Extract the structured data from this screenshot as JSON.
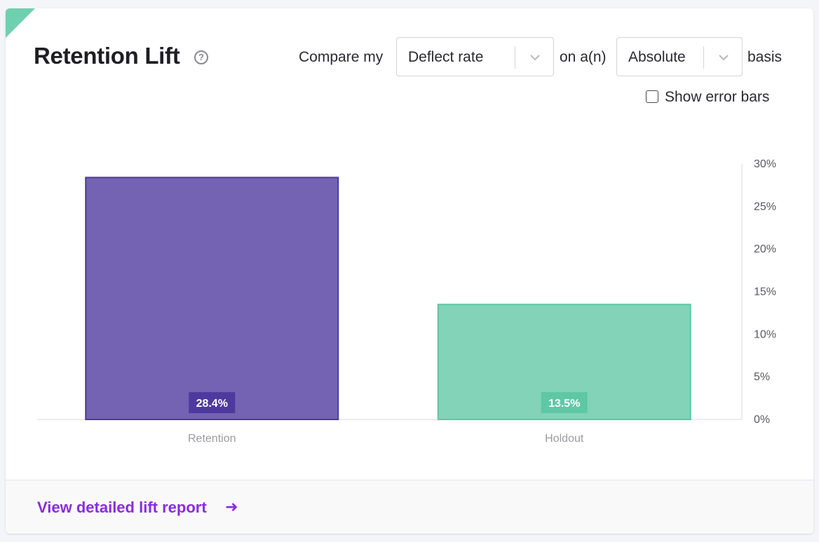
{
  "header": {
    "title": "Retention Lift",
    "help_icon": "question-circle-icon"
  },
  "controls": {
    "compare_prefix": "Compare my",
    "metric_select_value": "Deflect rate",
    "middle_text": "on a(n)",
    "basis_select_value": "Absolute",
    "suffix": "basis",
    "error_bars_label": "Show error bars",
    "error_bars_checked": false
  },
  "footer": {
    "link_label": "View detailed lift report",
    "link_icon": "arrow-right-icon"
  },
  "colors": {
    "corner_accent": "#6fd0b0",
    "retention_fill": "#7363b2",
    "retention_border": "#4e3a9e",
    "retention_label_bg": "#4e3a9e",
    "holdout_fill": "#82d3b8",
    "holdout_border": "#5ec8a4",
    "holdout_label_bg": "#5ec8a4",
    "link": "#8a2be2"
  },
  "chart_data": {
    "type": "bar",
    "categories": [
      "Retention",
      "Holdout"
    ],
    "values": [
      28.4,
      13.5
    ],
    "data_labels": [
      "28.4%",
      "13.5%"
    ],
    "ylim": [
      0,
      30
    ],
    "yticks": [
      0,
      5,
      10,
      15,
      20,
      25,
      30
    ],
    "ytick_labels": [
      "0%",
      "5%",
      "10%",
      "15%",
      "20%",
      "25%",
      "30%"
    ],
    "y_axis_position": "right",
    "grid": false,
    "legend": "none"
  }
}
